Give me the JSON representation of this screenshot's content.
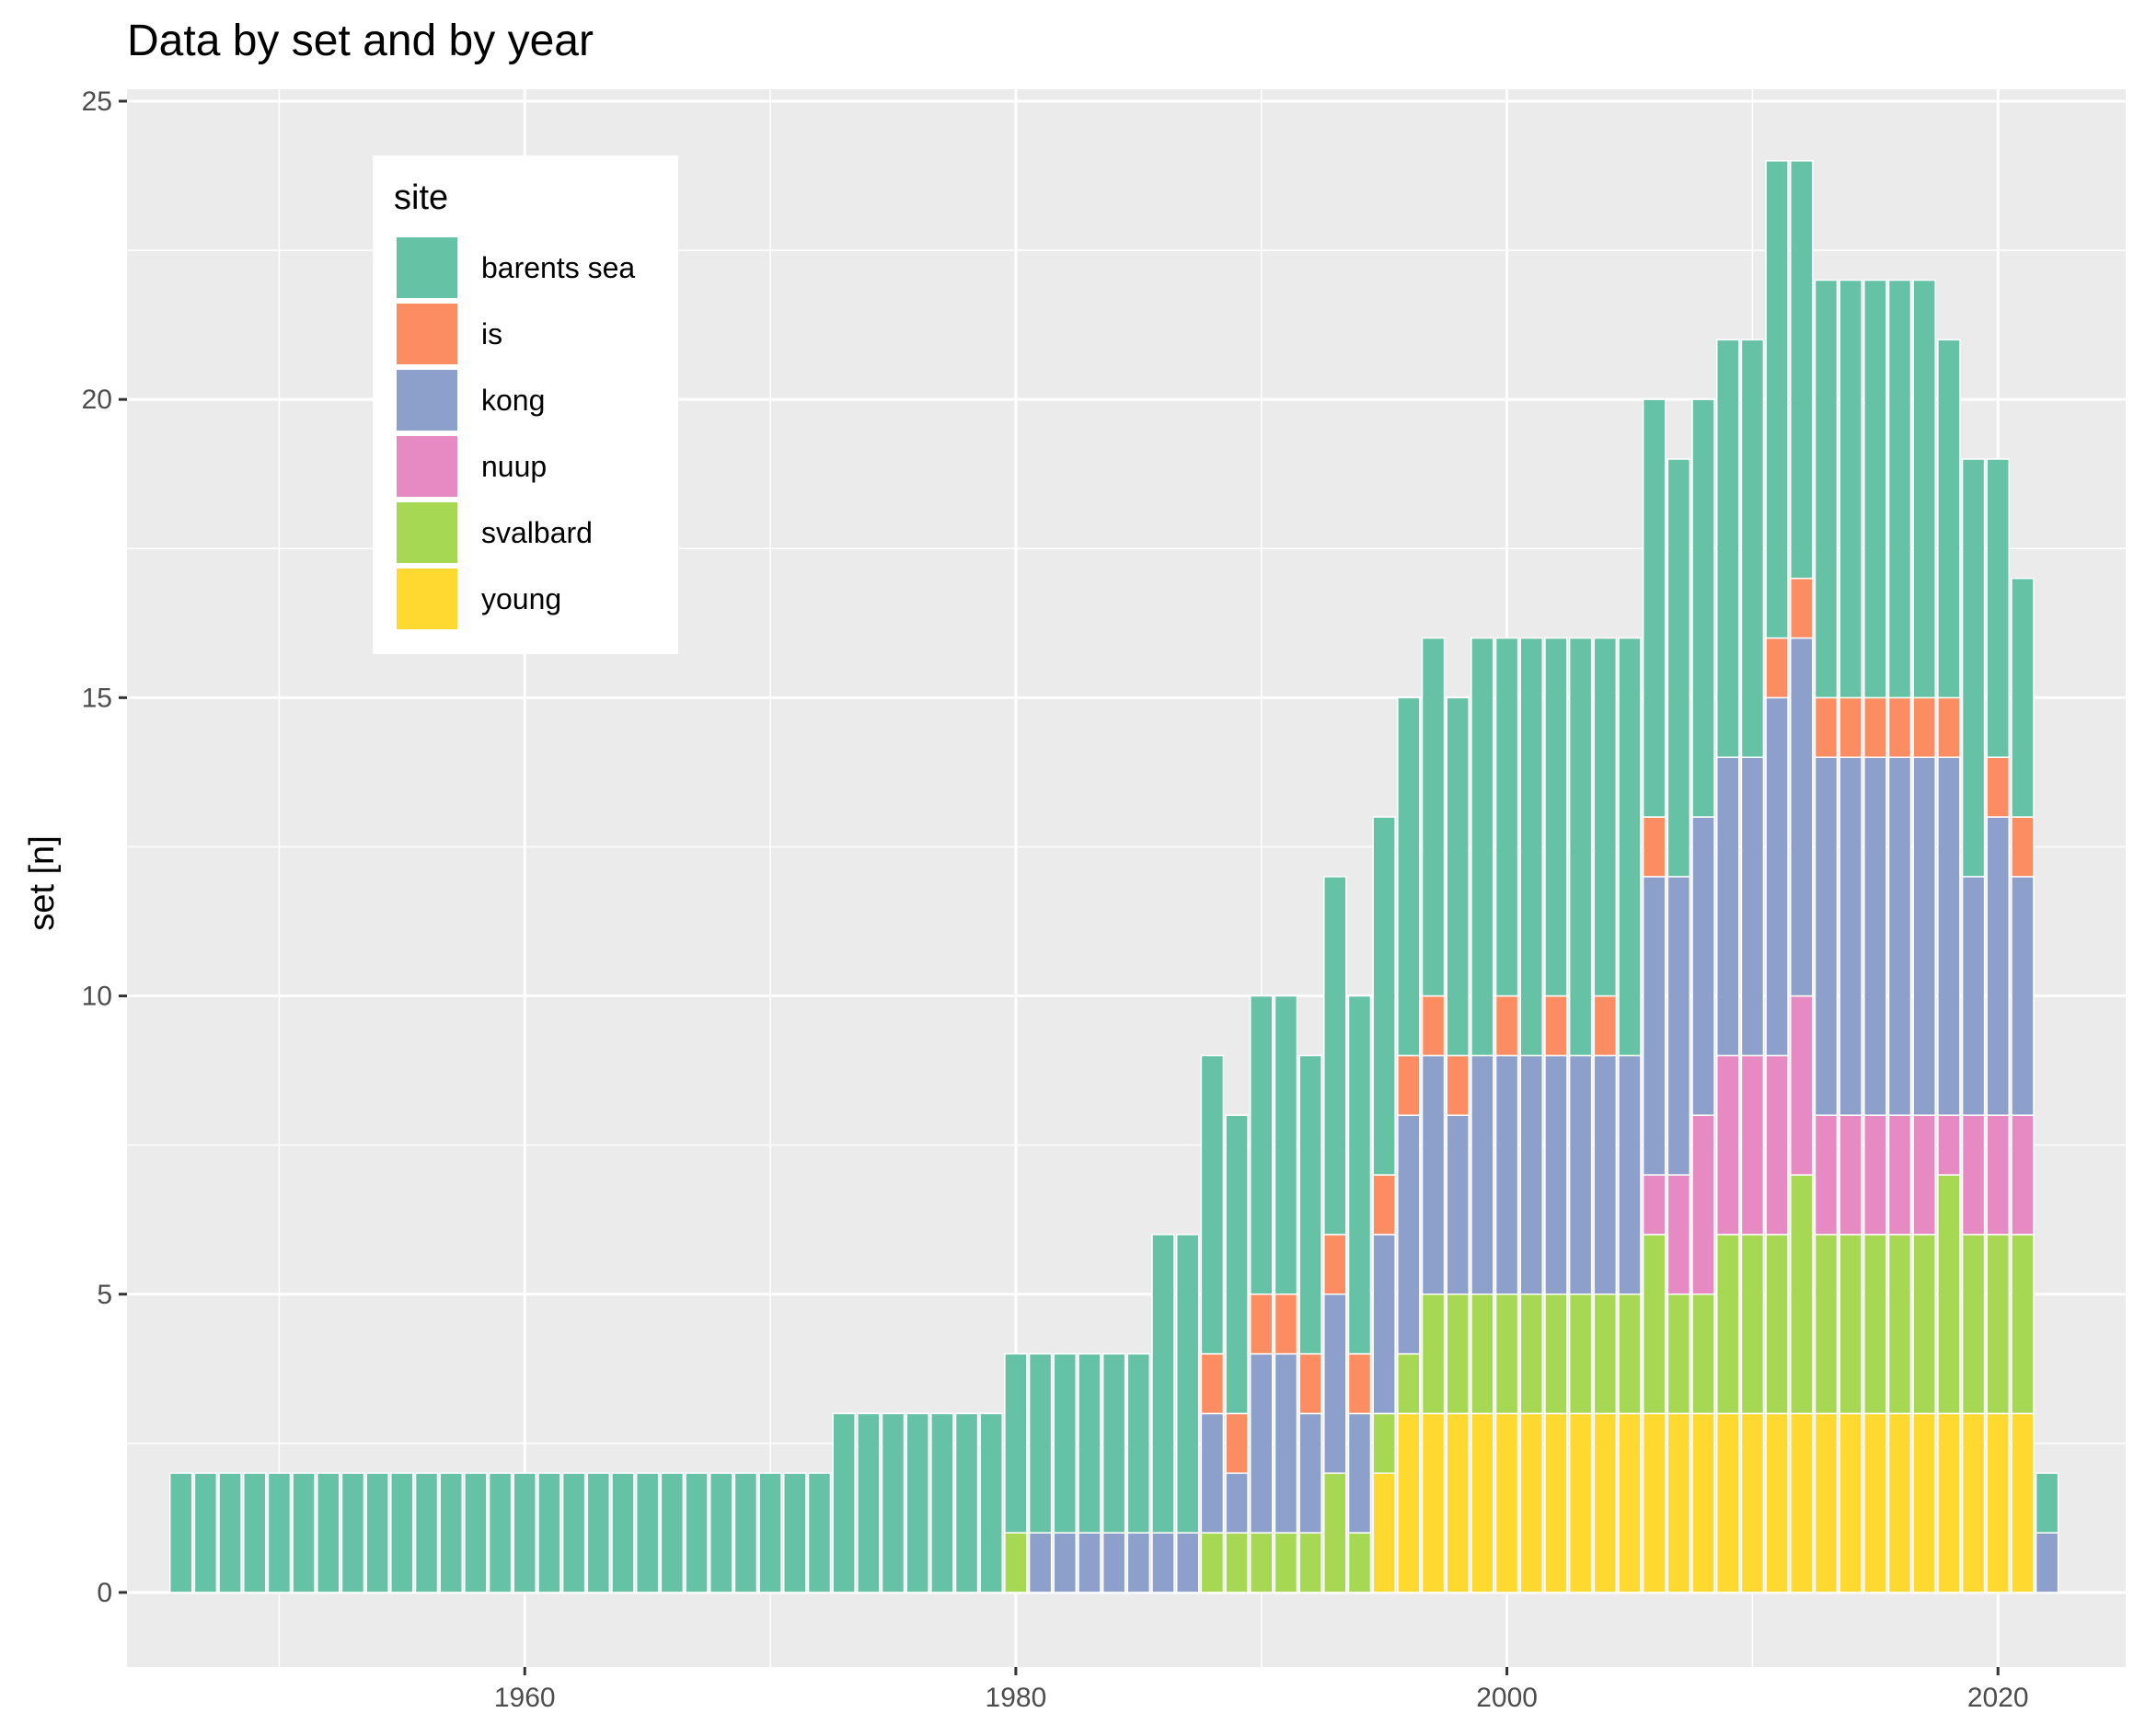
{
  "chart_data": {
    "type": "bar",
    "stacked": true,
    "title": "Data by set and by year",
    "xlabel": "",
    "ylabel": "set [n]",
    "xlim": [
      1943.8,
      2025.2
    ],
    "ylim": [
      -1.25,
      25.2
    ],
    "x_ticks": [
      1960,
      1980,
      2000,
      2020
    ],
    "y_ticks": [
      0,
      5,
      10,
      15,
      20,
      25
    ],
    "grid": true,
    "legend": {
      "title": "site",
      "position": "top-left-inside"
    },
    "x": [
      1946,
      1947,
      1948,
      1949,
      1950,
      1951,
      1952,
      1953,
      1954,
      1955,
      1956,
      1957,
      1958,
      1959,
      1960,
      1961,
      1962,
      1963,
      1964,
      1965,
      1966,
      1967,
      1968,
      1969,
      1970,
      1971,
      1972,
      1973,
      1974,
      1975,
      1976,
      1977,
      1978,
      1979,
      1980,
      1981,
      1982,
      1983,
      1984,
      1985,
      1986,
      1987,
      1988,
      1989,
      1990,
      1991,
      1992,
      1993,
      1994,
      1995,
      1996,
      1997,
      1998,
      1999,
      2000,
      2001,
      2002,
      2003,
      2004,
      2005,
      2006,
      2007,
      2008,
      2009,
      2010,
      2011,
      2012,
      2013,
      2014,
      2015,
      2016,
      2017,
      2018,
      2019,
      2020,
      2021,
      2022
    ],
    "series": [
      {
        "name": "young",
        "color": "#FFD92F",
        "values": [
          0,
          0,
          0,
          0,
          0,
          0,
          0,
          0,
          0,
          0,
          0,
          0,
          0,
          0,
          0,
          0,
          0,
          0,
          0,
          0,
          0,
          0,
          0,
          0,
          0,
          0,
          0,
          0,
          0,
          0,
          0,
          0,
          0,
          0,
          0,
          0,
          0,
          0,
          0,
          0,
          0,
          0,
          0,
          0,
          0,
          0,
          0,
          0,
          0,
          2,
          3,
          3,
          3,
          3,
          3,
          3,
          3,
          3,
          3,
          3,
          3,
          3,
          3,
          3,
          3,
          3,
          3,
          3,
          3,
          3,
          3,
          3,
          3,
          3,
          3,
          3,
          0
        ]
      },
      {
        "name": "svalbard",
        "color": "#A6D854",
        "values": [
          0,
          0,
          0,
          0,
          0,
          0,
          0,
          0,
          0,
          0,
          0,
          0,
          0,
          0,
          0,
          0,
          0,
          0,
          0,
          0,
          0,
          0,
          0,
          0,
          0,
          0,
          0,
          0,
          0,
          0,
          0,
          0,
          0,
          0,
          1,
          0,
          0,
          0,
          0,
          0,
          0,
          0,
          1,
          1,
          1,
          1,
          1,
          2,
          1,
          1,
          1,
          2,
          2,
          2,
          2,
          2,
          2,
          2,
          2,
          2,
          3,
          2,
          2,
          3,
          3,
          3,
          4,
          3,
          3,
          3,
          3,
          3,
          4,
          3,
          3,
          3,
          0
        ]
      },
      {
        "name": "nuup",
        "color": "#E78AC3",
        "values": [
          0,
          0,
          0,
          0,
          0,
          0,
          0,
          0,
          0,
          0,
          0,
          0,
          0,
          0,
          0,
          0,
          0,
          0,
          0,
          0,
          0,
          0,
          0,
          0,
          0,
          0,
          0,
          0,
          0,
          0,
          0,
          0,
          0,
          0,
          0,
          0,
          0,
          0,
          0,
          0,
          0,
          0,
          0,
          0,
          0,
          0,
          0,
          0,
          0,
          0,
          0,
          0,
          0,
          0,
          0,
          0,
          0,
          0,
          0,
          0,
          1,
          2,
          3,
          3,
          3,
          3,
          3,
          2,
          2,
          2,
          2,
          2,
          1,
          2,
          2,
          2,
          0
        ]
      },
      {
        "name": "kong",
        "color": "#8DA0CB",
        "values": [
          0,
          0,
          0,
          0,
          0,
          0,
          0,
          0,
          0,
          0,
          0,
          0,
          0,
          0,
          0,
          0,
          0,
          0,
          0,
          0,
          0,
          0,
          0,
          0,
          0,
          0,
          0,
          0,
          0,
          0,
          0,
          0,
          0,
          0,
          0,
          1,
          1,
          1,
          1,
          1,
          1,
          1,
          2,
          1,
          3,
          3,
          2,
          3,
          2,
          3,
          4,
          4,
          3,
          4,
          4,
          4,
          4,
          4,
          4,
          4,
          5,
          5,
          5,
          5,
          5,
          6,
          6,
          6,
          6,
          6,
          6,
          6,
          6,
          4,
          5,
          4,
          1
        ]
      },
      {
        "name": "is",
        "color": "#FC8D62",
        "values": [
          0,
          0,
          0,
          0,
          0,
          0,
          0,
          0,
          0,
          0,
          0,
          0,
          0,
          0,
          0,
          0,
          0,
          0,
          0,
          0,
          0,
          0,
          0,
          0,
          0,
          0,
          0,
          0,
          0,
          0,
          0,
          0,
          0,
          0,
          0,
          0,
          0,
          0,
          0,
          0,
          0,
          0,
          1,
          1,
          1,
          1,
          1,
          1,
          1,
          1,
          1,
          1,
          1,
          0,
          1,
          0,
          1,
          0,
          1,
          0,
          1,
          0,
          0,
          0,
          0,
          1,
          1,
          1,
          1,
          1,
          1,
          1,
          1,
          0,
          1,
          1,
          0
        ]
      },
      {
        "name": "barents sea",
        "color": "#66C2A5",
        "values": [
          2,
          2,
          2,
          2,
          2,
          2,
          2,
          2,
          2,
          2,
          2,
          2,
          2,
          2,
          2,
          2,
          2,
          2,
          2,
          2,
          2,
          2,
          2,
          2,
          2,
          2,
          2,
          3,
          3,
          3,
          3,
          3,
          3,
          3,
          3,
          3,
          3,
          3,
          3,
          3,
          5,
          5,
          5,
          5,
          5,
          5,
          5,
          6,
          6,
          6,
          6,
          6,
          6,
          7,
          6,
          7,
          6,
          7,
          6,
          7,
          7,
          7,
          7,
          7,
          7,
          8,
          7,
          7,
          7,
          7,
          7,
          7,
          6,
          7,
          5,
          4,
          1
        ]
      }
    ]
  }
}
